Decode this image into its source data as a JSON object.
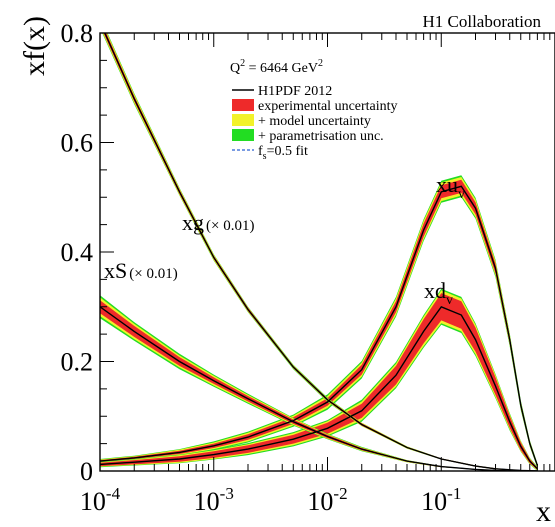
{
  "header": {
    "collaboration": "H1 Collaboration"
  },
  "chart_data": {
    "type": "line",
    "title": "",
    "xlabel": "x",
    "ylabel": "xf(x)",
    "xscale": "log",
    "xlim": [
      0.0001,
      1
    ],
    "ylim": [
      0,
      0.8
    ],
    "grid": false,
    "legend_position": "top-center",
    "x_ticks": [
      {
        "value": 0.0001,
        "base": "10",
        "exp": "-4"
      },
      {
        "value": 0.001,
        "base": "10",
        "exp": "-3"
      },
      {
        "value": 0.01,
        "base": "10",
        "exp": "-2"
      },
      {
        "value": 0.1,
        "base": "10",
        "exp": "-1"
      }
    ],
    "y_ticks": [
      {
        "value": 0,
        "label": "0"
      },
      {
        "value": 0.2,
        "label": "0.2"
      },
      {
        "value": 0.4,
        "label": "0.4"
      },
      {
        "value": 0.6,
        "label": "0.6"
      },
      {
        "value": 0.8,
        "label": "0.8"
      }
    ],
    "legend": {
      "q2_prefix": "Q",
      "q2_exp": "2",
      "q2_middle": " = 6464 GeV",
      "q2_unit_exp": "2",
      "entries": [
        {
          "key": "central",
          "label": "H1PDF 2012",
          "style": "line",
          "color": "#000000"
        },
        {
          "key": "exp",
          "label": "experimental uncertainty",
          "style": "box",
          "color": "#ee2a2a"
        },
        {
          "key": "model",
          "label": "+ model uncertainty",
          "style": "box",
          "color": "#f2f22a"
        },
        {
          "key": "param",
          "label": "+ parametrisation unc.",
          "style": "box",
          "color": "#22dd22"
        },
        {
          "key": "fs",
          "label_prefix": "f",
          "label_sub": "s",
          "label_suffix": "=0.5 fit",
          "style": "dashed",
          "color": "#2b5fd0"
        }
      ]
    },
    "band_colors": {
      "exp": "#ee2a2a",
      "model": "#f2f22a",
      "param": "#22dd22"
    },
    "series": [
      {
        "key": "xuv",
        "name_main": "xu",
        "name_sub": "v",
        "name_suffix": "",
        "x": [
          0.0001,
          0.0002,
          0.0005,
          0.001,
          0.002,
          0.005,
          0.01,
          0.02,
          0.04,
          0.07,
          0.1,
          0.15,
          0.2,
          0.3,
          0.4,
          0.5,
          0.6,
          0.7
        ],
        "y": [
          0.018,
          0.024,
          0.034,
          0.046,
          0.062,
          0.092,
          0.126,
          0.185,
          0.3,
          0.44,
          0.51,
          0.52,
          0.48,
          0.37,
          0.24,
          0.12,
          0.05,
          0.01
        ],
        "err_exp": [
          0.002,
          0.002,
          0.003,
          0.004,
          0.005,
          0.006,
          0.007,
          0.009,
          0.01,
          0.012,
          0.012,
          0.012,
          0.011,
          0.009,
          0.007,
          0.005,
          0.003,
          0.002
        ],
        "err_model": [
          0.001,
          0.001,
          0.002,
          0.002,
          0.003,
          0.003,
          0.004,
          0.004,
          0.005,
          0.005,
          0.005,
          0.005,
          0.005,
          0.004,
          0.003,
          0.002,
          0.002,
          0.001
        ],
        "err_param": [
          0.001,
          0.001,
          0.001,
          0.002,
          0.002,
          0.002,
          0.003,
          0.003,
          0.003,
          0.003,
          0.003,
          0.003,
          0.003,
          0.003,
          0.002,
          0.002,
          0.001,
          0.001
        ]
      },
      {
        "key": "xdv",
        "name_main": "xd",
        "name_sub": "v",
        "name_suffix": "",
        "x": [
          0.0001,
          0.0002,
          0.0005,
          0.001,
          0.002,
          0.005,
          0.01,
          0.02,
          0.04,
          0.07,
          0.1,
          0.15,
          0.2,
          0.3,
          0.4,
          0.5,
          0.6,
          0.7
        ],
        "y": [
          0.012,
          0.016,
          0.022,
          0.03,
          0.04,
          0.058,
          0.078,
          0.11,
          0.175,
          0.255,
          0.3,
          0.285,
          0.24,
          0.155,
          0.09,
          0.045,
          0.018,
          0.004
        ],
        "err_exp": [
          0.003,
          0.004,
          0.005,
          0.006,
          0.007,
          0.008,
          0.01,
          0.013,
          0.017,
          0.022,
          0.025,
          0.025,
          0.022,
          0.016,
          0.011,
          0.007,
          0.004,
          0.002
        ],
        "err_model": [
          0.001,
          0.001,
          0.002,
          0.002,
          0.002,
          0.003,
          0.003,
          0.004,
          0.004,
          0.005,
          0.005,
          0.005,
          0.005,
          0.004,
          0.003,
          0.002,
          0.001,
          0.001
        ],
        "err_param": [
          0.001,
          0.001,
          0.001,
          0.001,
          0.002,
          0.002,
          0.002,
          0.003,
          0.003,
          0.003,
          0.003,
          0.003,
          0.003,
          0.002,
          0.002,
          0.001,
          0.001,
          0.001
        ]
      },
      {
        "key": "xg",
        "name_main": "xg",
        "name_sub": "",
        "name_suffix": "(× 0.01)",
        "x": [
          0.0001,
          0.0002,
          0.0005,
          0.001,
          0.002,
          0.005,
          0.01,
          0.02,
          0.05,
          0.1,
          0.2,
          0.3,
          0.5,
          0.7
        ],
        "y": [
          0.82,
          0.68,
          0.51,
          0.39,
          0.295,
          0.19,
          0.13,
          0.085,
          0.043,
          0.022,
          0.009,
          0.004,
          0.001,
          0.0
        ],
        "err_exp": [
          0.006,
          0.005,
          0.004,
          0.003,
          0.003,
          0.002,
          0.002,
          0.002,
          0.001,
          0.001,
          0.001,
          0.001,
          0.0,
          0.0
        ],
        "err_model": [
          0.003,
          0.003,
          0.002,
          0.002,
          0.001,
          0.001,
          0.001,
          0.001,
          0.001,
          0.0,
          0.0,
          0.0,
          0.0,
          0.0
        ],
        "err_param": [
          0.002,
          0.002,
          0.001,
          0.001,
          0.001,
          0.001,
          0.001,
          0.0,
          0.0,
          0.0,
          0.0,
          0.0,
          0.0,
          0.0
        ]
      },
      {
        "key": "xS",
        "name_main": "xS",
        "name_sub": "",
        "name_suffix": "(× 0.01)",
        "x": [
          0.0001,
          0.0002,
          0.0005,
          0.001,
          0.002,
          0.005,
          0.01,
          0.02,
          0.05,
          0.1,
          0.2,
          0.3,
          0.5,
          0.7
        ],
        "y": [
          0.3,
          0.255,
          0.2,
          0.165,
          0.132,
          0.09,
          0.063,
          0.04,
          0.018,
          0.008,
          0.003,
          0.001,
          0.0,
          0.0
        ],
        "err_exp": [
          0.012,
          0.01,
          0.008,
          0.006,
          0.005,
          0.004,
          0.003,
          0.002,
          0.001,
          0.001,
          0.0,
          0.0,
          0.0,
          0.0
        ],
        "err_model": [
          0.005,
          0.004,
          0.003,
          0.003,
          0.002,
          0.002,
          0.001,
          0.001,
          0.001,
          0.0,
          0.0,
          0.0,
          0.0,
          0.0
        ],
        "err_param": [
          0.004,
          0.003,
          0.003,
          0.002,
          0.002,
          0.001,
          0.001,
          0.001,
          0.0,
          0.0,
          0.0,
          0.0,
          0.0,
          0.0
        ]
      }
    ]
  }
}
